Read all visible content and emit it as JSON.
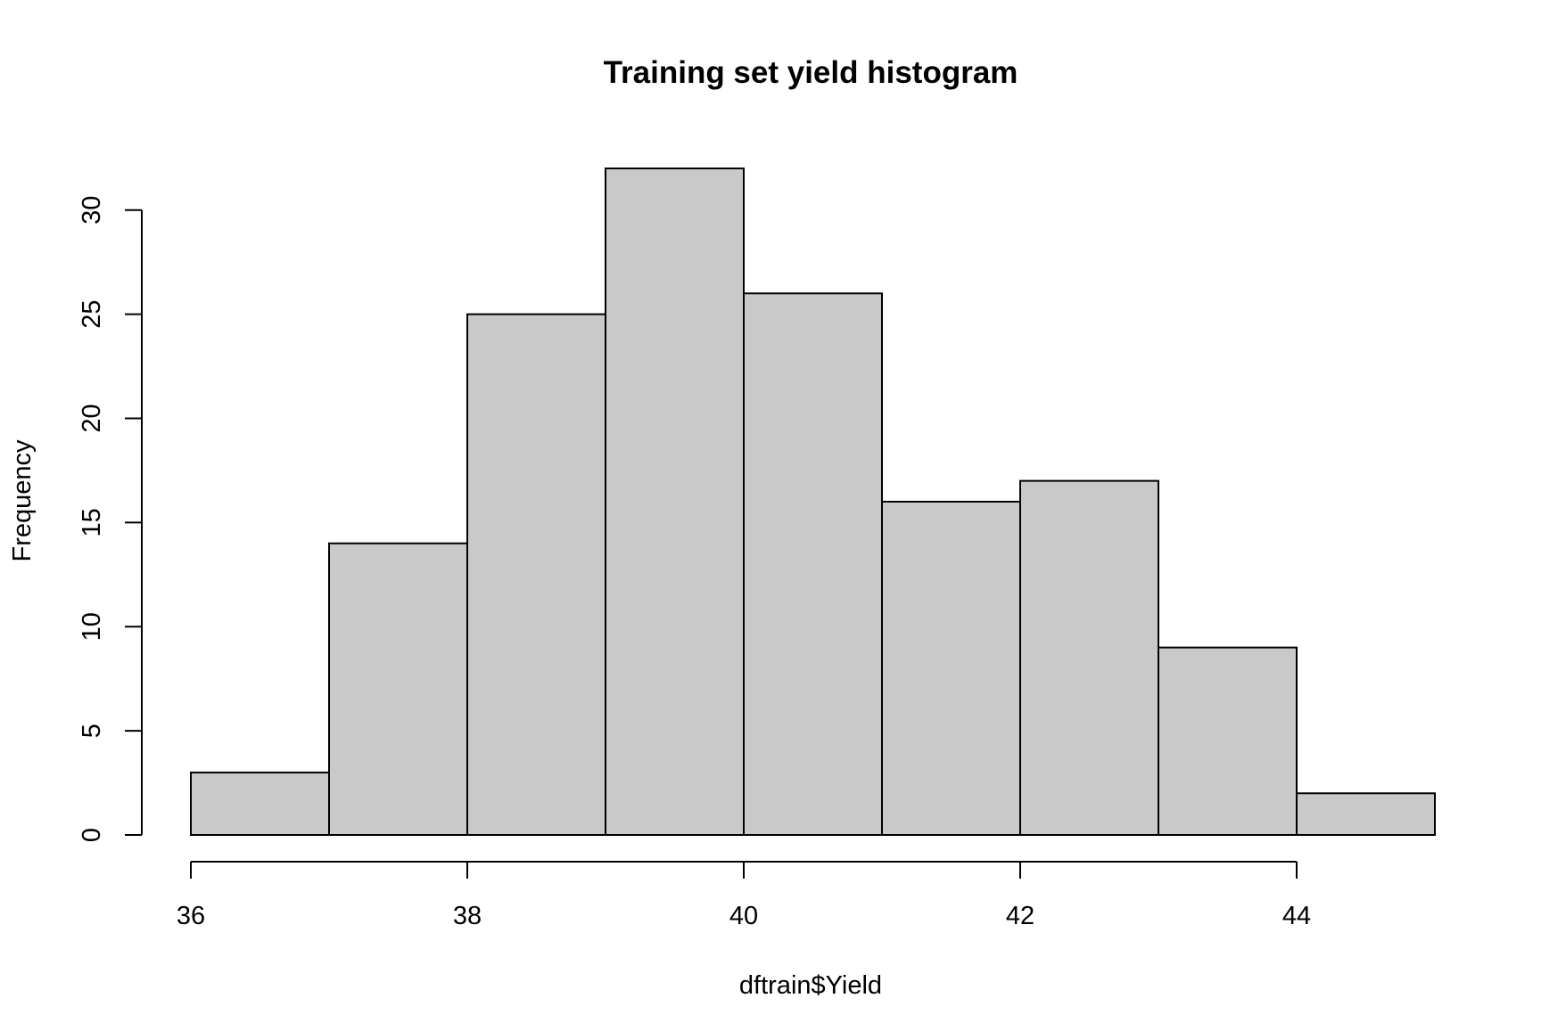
{
  "chart_data": {
    "type": "bar",
    "title": "Training set yield histogram",
    "xlabel": "dftrain$Yield",
    "ylabel": "Frequency",
    "bins": [
      {
        "from": 36,
        "to": 37,
        "count": 3
      },
      {
        "from": 37,
        "to": 38,
        "count": 14
      },
      {
        "from": 38,
        "to": 39,
        "count": 25
      },
      {
        "from": 39,
        "to": 40,
        "count": 32
      },
      {
        "from": 40,
        "to": 41,
        "count": 26
      },
      {
        "from": 41,
        "to": 42,
        "count": 16
      },
      {
        "from": 42,
        "to": 43,
        "count": 17
      },
      {
        "from": 43,
        "to": 44,
        "count": 9
      },
      {
        "from": 44,
        "to": 45,
        "count": 2
      }
    ],
    "x_ticks": [
      36,
      38,
      40,
      42,
      44
    ],
    "y_ticks": [
      0,
      5,
      10,
      15,
      20,
      25,
      30
    ],
    "xlim": [
      36,
      45
    ],
    "ylim": [
      0,
      32
    ],
    "grid": false,
    "bar_color": "#c9c9c9",
    "border_color": "#000000"
  }
}
